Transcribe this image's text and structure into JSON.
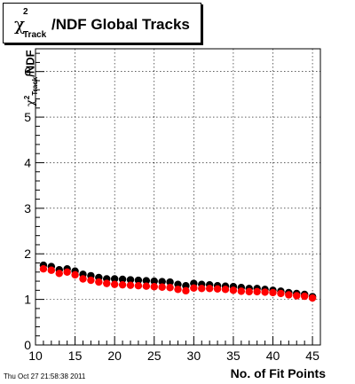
{
  "title": {
    "symbol": "χ",
    "superscript": "2",
    "subscript": "Track",
    "text": "/NDF  Global Tracks"
  },
  "timestamp": "Thu Oct 27 21:58:38 2011",
  "chart_data": {
    "type": "scatter",
    "xlabel": "No. of Fit Points",
    "ylabel": {
      "symbol": "χ",
      "superscript": "2",
      "subscript": "Track",
      "text": "/NDF"
    },
    "xlim": [
      10,
      46
    ],
    "ylim": [
      0,
      6.5
    ],
    "xticks": [
      10,
      15,
      20,
      25,
      30,
      35,
      40,
      45
    ],
    "yticks": [
      0,
      1,
      2,
      3,
      4,
      5,
      6
    ],
    "grid": true,
    "colors": {
      "series_black": "#000000",
      "series_red": "#ff0000"
    },
    "x": [
      11,
      12,
      13,
      14,
      15,
      16,
      17,
      18,
      19,
      20,
      21,
      22,
      23,
      24,
      25,
      26,
      27,
      28,
      29,
      30,
      31,
      32,
      33,
      34,
      35,
      36,
      37,
      38,
      39,
      40,
      41,
      42,
      43,
      44,
      45
    ],
    "series": [
      {
        "color": "#000000",
        "values": [
          1.75,
          1.72,
          1.65,
          1.67,
          1.62,
          1.55,
          1.52,
          1.48,
          1.45,
          1.45,
          1.44,
          1.43,
          1.42,
          1.41,
          1.4,
          1.39,
          1.38,
          1.33,
          1.3,
          1.35,
          1.33,
          1.32,
          1.3,
          1.29,
          1.28,
          1.26,
          1.24,
          1.24,
          1.22,
          1.2,
          1.18,
          1.15,
          1.13,
          1.11,
          1.06
        ]
      },
      {
        "color": "#ff0000",
        "values": [
          1.67,
          1.64,
          1.57,
          1.6,
          1.54,
          1.45,
          1.42,
          1.38,
          1.35,
          1.33,
          1.32,
          1.31,
          1.3,
          1.29,
          1.28,
          1.27,
          1.26,
          1.22,
          1.19,
          1.25,
          1.24,
          1.24,
          1.23,
          1.22,
          1.2,
          1.18,
          1.17,
          1.17,
          1.16,
          1.15,
          1.13,
          1.1,
          1.08,
          1.07,
          1.03
        ]
      }
    ]
  }
}
